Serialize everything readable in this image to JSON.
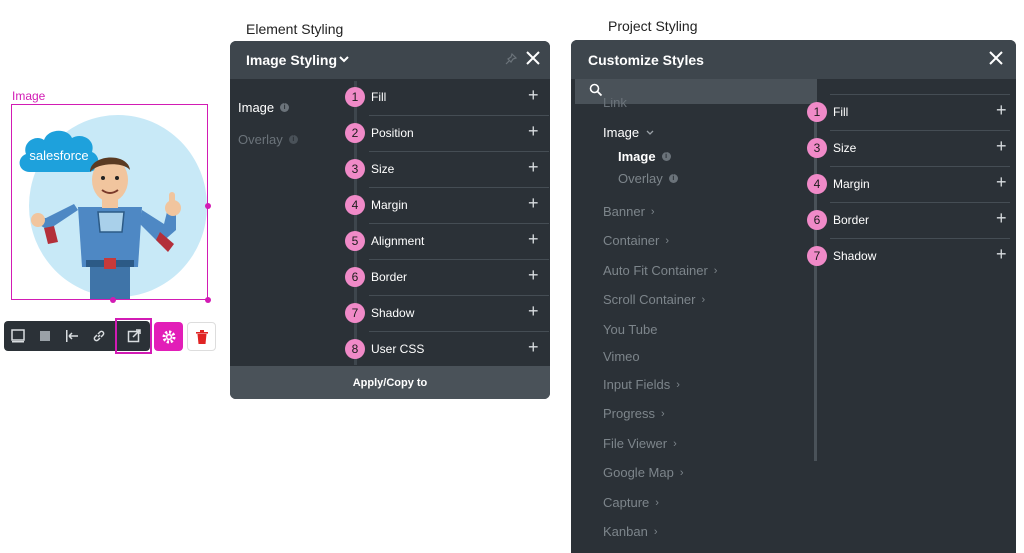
{
  "captions": {
    "element_styling": "Element Styling",
    "project_styling": "Project Styling"
  },
  "canvas": {
    "image_label": "Image",
    "salesforce_text": "salesforce"
  },
  "toolbar": {
    "icons": [
      "square-outline-icon",
      "square-filled-icon",
      "align-left-icon",
      "link-icon",
      "external-link-icon",
      "gear-icon",
      "trash-icon"
    ]
  },
  "element_panel": {
    "title": "Image Styling",
    "tabs": [
      {
        "label": "Image"
      },
      {
        "label": "Overlay"
      }
    ],
    "rows": [
      {
        "num": "1",
        "label": "Fill"
      },
      {
        "num": "2",
        "label": "Position"
      },
      {
        "num": "3",
        "label": "Size"
      },
      {
        "num": "4",
        "label": "Margin"
      },
      {
        "num": "5",
        "label": "Alignment"
      },
      {
        "num": "6",
        "label": "Border"
      },
      {
        "num": "7",
        "label": "Shadow"
      },
      {
        "num": "8",
        "label": "User CSS"
      }
    ],
    "apply_label": "Apply/Copy to"
  },
  "project_panel": {
    "title": "Customize Styles",
    "search_placeholder": "",
    "list": {
      "link": "Link",
      "image": "Image",
      "image_sub": "Image",
      "overlay_sub": "Overlay",
      "items": [
        "Banner",
        "Container",
        "Auto Fit Container",
        "Scroll Container",
        "You Tube",
        "Vimeo",
        "Input Fields",
        "Progress",
        "File Viewer",
        "Google Map",
        "Capture",
        "Kanban"
      ]
    },
    "rows": [
      {
        "num": "1",
        "label": "Fill"
      },
      {
        "num": "3",
        "label": "Size"
      },
      {
        "num": "4",
        "label": "Margin"
      },
      {
        "num": "6",
        "label": "Border"
      },
      {
        "num": "7",
        "label": "Shadow"
      }
    ]
  },
  "colors": {
    "accent_magenta": "#d21bb4",
    "badge_pink": "#f08ac8",
    "panel_bg": "#2b3137",
    "panel_header": "#3e464d"
  }
}
